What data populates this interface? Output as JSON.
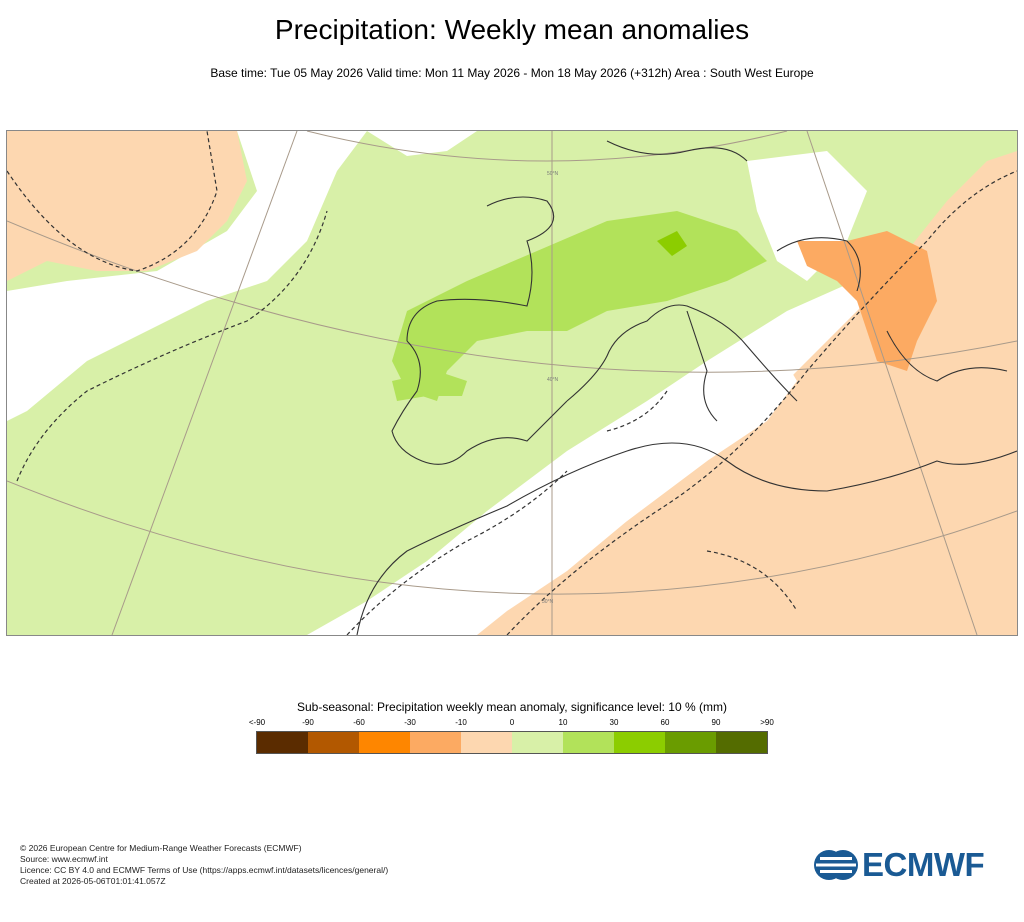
{
  "header": {
    "title": "Precipitation: Weekly mean anomalies",
    "subtitle": "Base time: Tue 05 May 2026 Valid time: Mon 11 May 2026 - Mon 18 May 2026 (+312h) Area : South West Europe"
  },
  "map": {
    "region": "South West Europe",
    "lat_labels": [
      "50°N",
      "40°N",
      "30°N"
    ],
    "colors": {
      "light_green": "#d8f0a8",
      "green": "#b2e25a",
      "dark_green": "#8ccd00",
      "light_orange": "#fdd7b0",
      "orange": "#fcaa62",
      "coast": "#333333",
      "graticule": "#a89a8a"
    }
  },
  "legend": {
    "title": "Sub-seasonal: Precipitation weekly mean anomaly, significance level: 10 % (mm)",
    "ticks": [
      "<-90",
      "-90",
      "-60",
      "-30",
      "-10",
      "0",
      "10",
      "30",
      "60",
      "90",
      ">90"
    ],
    "colors": [
      "#5b2c00",
      "#b25800",
      "#fe8600",
      "#fcaa62",
      "#fdd7b0",
      "#d8f0a8",
      "#b2e25a",
      "#8ccd00",
      "#6a9c00",
      "#546c00"
    ]
  },
  "footer": {
    "copyright": "© 2026 European Centre for Medium-Range Weather Forecasts (ECMWF)",
    "source": "Source: www.ecmwf.int",
    "licence": "Licence: CC BY 4.0 and ECMWF Terms of Use (https://apps.ecmwf.int/datasets/licences/general/)",
    "created": "Created at 2026-05-06T01:01:41.057Z"
  },
  "logo": {
    "text": "ECMWF",
    "color": "#1a5a94"
  }
}
